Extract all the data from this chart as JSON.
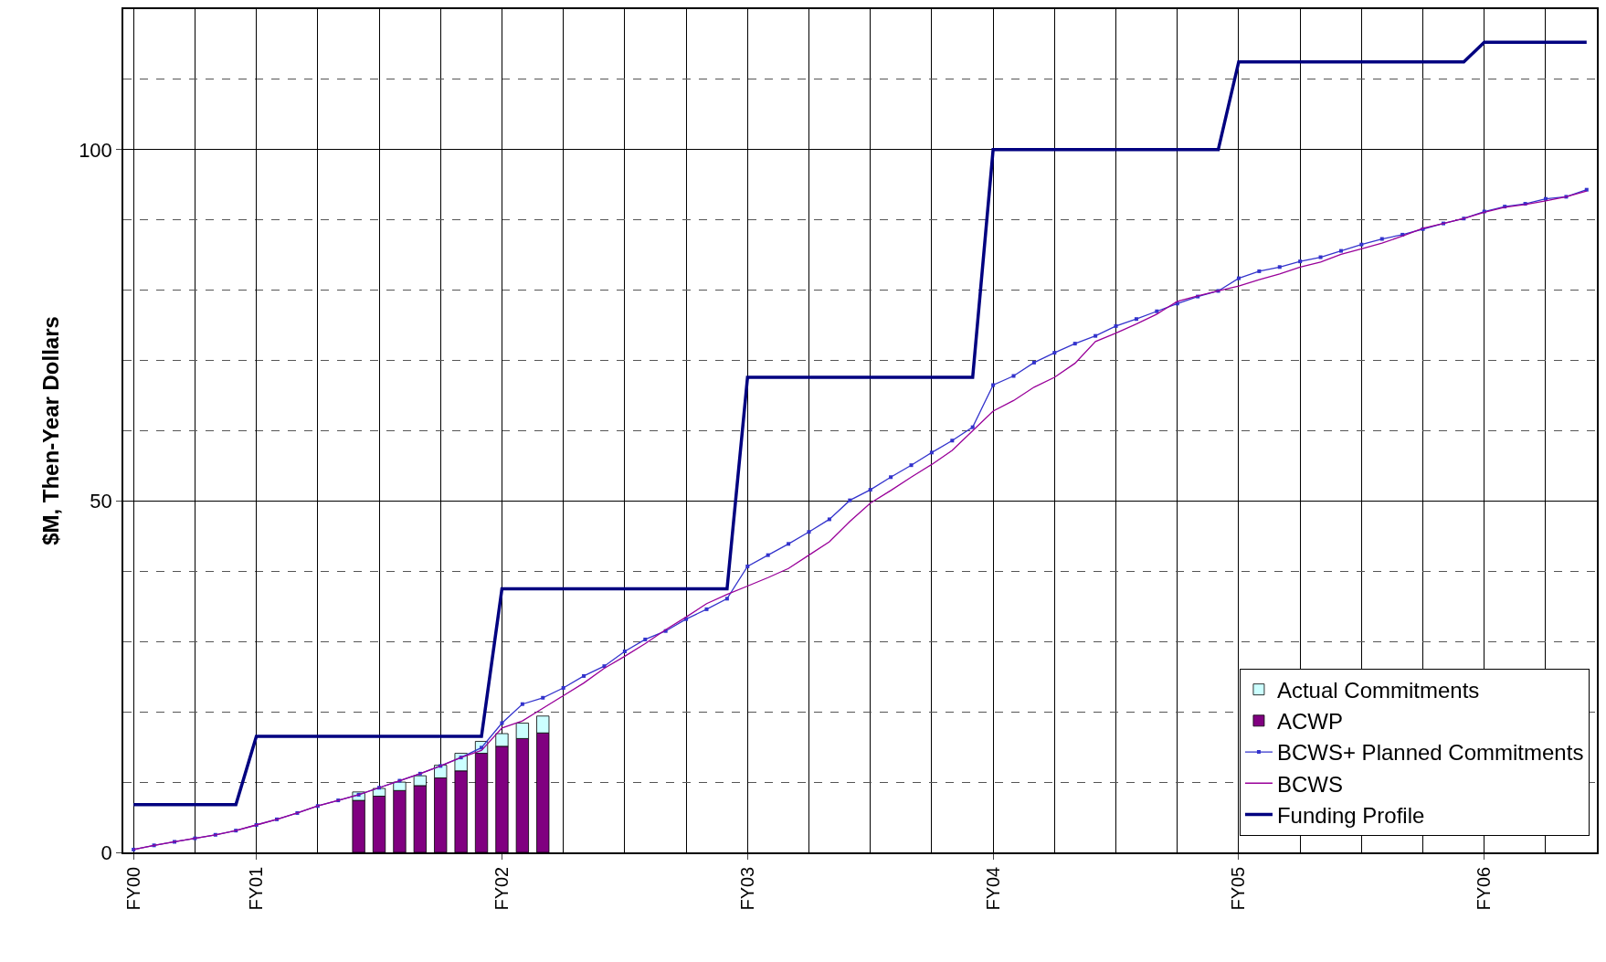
{
  "chart_data": {
    "type": "line",
    "ylabel": "$M, Then-Year Dollars",
    "stacked": true,
    "categories": [
      "FY00",
      null,
      null,
      null,
      null,
      null,
      "FY01",
      null,
      null,
      null,
      null,
      null,
      null,
      null,
      null,
      null,
      null,
      null,
      "FY02",
      null,
      null,
      null,
      null,
      null,
      null,
      null,
      null,
      null,
      null,
      null,
      "FY03",
      null,
      null,
      null,
      null,
      null,
      null,
      null,
      null,
      null,
      null,
      null,
      "FY04",
      null,
      null,
      null,
      null,
      null,
      null,
      null,
      null,
      null,
      null,
      null,
      "FY05",
      null,
      null,
      null,
      null,
      null,
      null,
      null,
      null,
      null,
      null,
      null,
      "FY06",
      null,
      null,
      null,
      null,
      null
    ],
    "ylim": [
      0,
      120
    ],
    "yticks": [
      0,
      {
        "value": 10,
        "label": null
      },
      {
        "value": 20,
        "label": null
      },
      {
        "value": 30,
        "label": null
      },
      {
        "value": 40,
        "label": null
      },
      50,
      {
        "value": 60,
        "label": null
      },
      {
        "value": 70,
        "label": null
      },
      {
        "value": 80,
        "label": null
      },
      {
        "value": 90,
        "label": null
      },
      100,
      {
        "value": 110,
        "label": null
      }
    ],
    "grid": true,
    "legend": "bottom right",
    "series": [
      {
        "name": "ACWP",
        "type": "bar",
        "color": "#800080",
        "values": [
          null,
          null,
          null,
          null,
          null,
          null,
          null,
          null,
          null,
          null,
          null,
          7.4,
          8.0,
          8.8,
          9.5,
          10.6,
          11.6,
          14.1,
          15.1,
          16.2,
          17.0,
          null,
          null,
          null,
          null,
          null,
          null,
          null,
          null,
          null,
          null,
          null,
          null,
          null,
          null,
          null,
          null,
          null,
          null,
          null,
          null,
          null,
          null,
          null,
          null,
          null,
          null,
          null,
          null,
          null,
          null,
          null,
          null,
          null,
          null,
          null,
          null,
          null,
          null,
          null,
          null,
          null,
          null,
          null,
          null,
          null,
          null,
          null,
          null,
          null,
          null,
          null
        ]
      },
      {
        "name": "Actual Commitments",
        "type": "bar",
        "color": "#ccffff",
        "values": [
          null,
          null,
          null,
          null,
          null,
          null,
          null,
          null,
          null,
          null,
          null,
          1.2,
          1.1,
          1.2,
          1.4,
          1.8,
          2.5,
          1.7,
          1.8,
          2.2,
          2.4,
          null,
          null,
          null,
          null,
          null,
          null,
          null,
          null,
          null,
          null,
          null,
          null,
          null,
          null,
          null,
          null,
          null,
          null,
          null,
          null,
          null,
          null,
          null,
          null,
          null,
          null,
          null,
          null,
          null,
          null,
          null,
          null,
          null,
          null,
          null,
          null,
          null,
          null,
          null,
          null,
          null,
          null,
          null,
          null,
          null,
          null,
          null,
          null,
          null,
          null,
          null
        ]
      },
      {
        "name": "BCWS+ Planned Commitments",
        "color": "#3333cc",
        "marker": "square",
        "values": [
          0.4,
          1.0,
          1.5,
          2.0,
          2.5,
          3.1,
          3.9,
          4.7,
          5.6,
          6.6,
          7.4,
          8.2,
          9.2,
          10.2,
          11.2,
          12.3,
          13.5,
          14.9,
          18.4,
          21.1,
          22.0,
          23.4,
          25.1,
          26.5,
          28.6,
          30.3,
          31.5,
          33.2,
          34.6,
          36.1,
          40.7,
          42.3,
          43.9,
          45.6,
          47.4,
          50.1,
          51.6,
          53.4,
          55.1,
          56.9,
          58.6,
          60.5,
          66.5,
          67.8,
          69.7,
          71.1,
          72.4,
          73.5,
          74.9,
          75.9,
          77.0,
          78.1,
          79.1,
          79.9,
          81.7,
          82.7,
          83.3,
          84.1,
          84.7,
          85.6,
          86.5,
          87.3,
          87.9,
          88.7,
          89.5,
          90.2,
          91.2,
          91.9,
          92.3,
          93.0,
          93.3,
          94.3
        ]
      },
      {
        "name": "BCWS",
        "color": "#990099",
        "marker": "none",
        "values": [
          0.4,
          1.0,
          1.5,
          2.0,
          2.5,
          3.1,
          3.9,
          4.7,
          5.6,
          6.6,
          7.4,
          8.2,
          9.2,
          10.2,
          11.2,
          12.3,
          13.5,
          14.5,
          17.7,
          18.7,
          20.5,
          22.3,
          24.1,
          26.2,
          27.9,
          29.7,
          31.7,
          33.5,
          35.4,
          36.7,
          37.9,
          39.1,
          40.4,
          42.3,
          44.2,
          47.1,
          49.7,
          51.5,
          53.4,
          55.2,
          57.2,
          60.0,
          62.8,
          64.3,
          66.2,
          67.6,
          69.6,
          72.7,
          73.9,
          75.2,
          76.6,
          78.4,
          79.2,
          79.9,
          80.6,
          81.5,
          82.3,
          83.3,
          84.0,
          85.1,
          85.9,
          86.7,
          87.7,
          88.8,
          89.5,
          90.2,
          91.1,
          91.8,
          92.2,
          92.7,
          93.3,
          94.1
        ]
      },
      {
        "name": "Funding Profile",
        "color": "#000080",
        "marker": "none",
        "values": [
          6.8,
          6.8,
          6.8,
          6.8,
          6.8,
          6.8,
          16.5,
          16.5,
          16.5,
          16.5,
          16.5,
          16.5,
          16.5,
          16.5,
          16.5,
          16.5,
          16.5,
          16.5,
          37.5,
          37.5,
          37.5,
          37.5,
          37.5,
          37.5,
          37.5,
          37.5,
          37.5,
          37.5,
          37.5,
          37.5,
          67.6,
          67.6,
          67.6,
          67.6,
          67.6,
          67.6,
          67.6,
          67.6,
          67.6,
          67.6,
          67.6,
          67.6,
          100,
          100,
          100,
          100,
          100,
          100,
          100,
          100,
          100,
          100,
          100,
          100,
          112.5,
          112.5,
          112.5,
          112.5,
          112.5,
          112.5,
          112.5,
          112.5,
          112.5,
          112.5,
          112.5,
          112.5,
          115.3,
          115.3,
          115.3,
          115.3,
          115.3,
          115.3
        ]
      }
    ]
  }
}
